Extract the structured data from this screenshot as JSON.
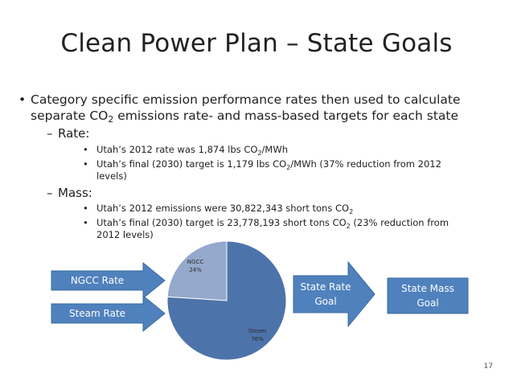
{
  "slide": {
    "title": "Clean Power Plan – State Goals",
    "bullet": {
      "line1": "Category specific emission performance rates then used to calculate",
      "line2_a": "separate CO",
      "line2_sub": "2",
      "line2_b": " emissions rate- and mass-based targets for each state"
    },
    "rate": {
      "heading": "Rate:",
      "item1_a": "Utah’s 2012 rate was 1,874 lbs CO",
      "item1_sub": "2",
      "item1_b": "/MWh",
      "item2_a": "Utah’s final (2030) target is 1,179 lbs CO",
      "item2_sub": "2",
      "item2_b": "/MWh (37% reduction from 2012",
      "item2_c": "levels)"
    },
    "mass": {
      "heading": "Mass:",
      "item1_a": "Utah’s 2012 emissions were 30,822,343 short tons CO",
      "item1_sub": "2",
      "item2_a": "Utah’s final (2030) target is 23,778,193 short tons CO",
      "item2_sub": "2",
      "item2_b": " (23% reduction from",
      "item2_c": "2012 levels)"
    },
    "page_number": "17"
  },
  "diagram": {
    "ngcc_rate": "NGCC Rate",
    "steam_rate": "Steam Rate",
    "state_rate_goal_1": "State Rate",
    "state_rate_goal_2": "Goal",
    "state_mass_goal_1": "State Mass",
    "state_mass_goal_2": "Goal"
  },
  "chart_data": {
    "type": "pie",
    "slices": [
      {
        "label": "NGCC",
        "value": 24,
        "value_label": "24%",
        "color": "#95a9cc"
      },
      {
        "label": "Steam",
        "value": 76,
        "value_label": "76%",
        "color": "#4d73ab"
      }
    ]
  },
  "colors": {
    "arrow_fill": "#4f81bd",
    "arrow_stroke": "#3a6aa0"
  }
}
